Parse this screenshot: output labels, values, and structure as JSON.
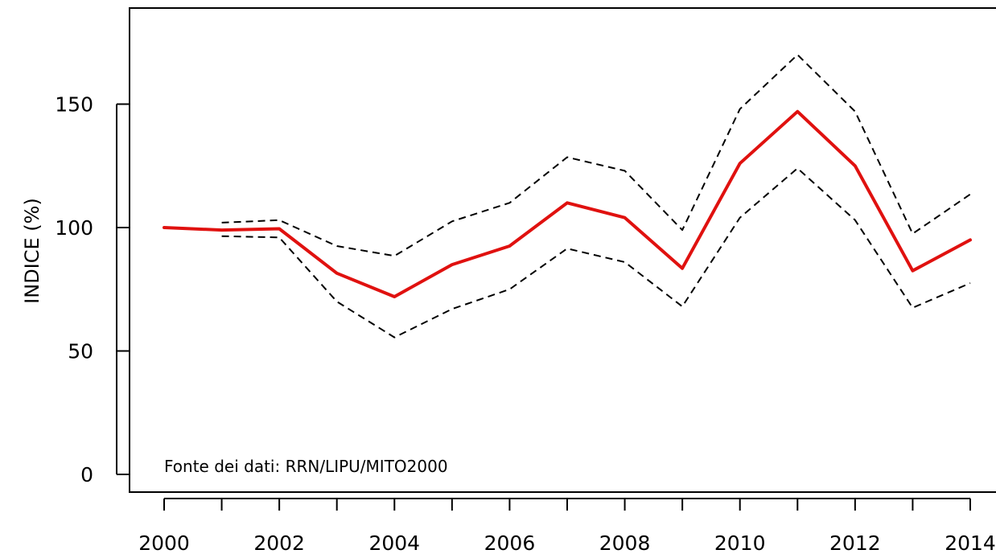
{
  "chart_data": {
    "type": "line",
    "ylabel": "INDICE (%)",
    "annotation": "Fonte dei dati: RRN/LIPU/MITO2000",
    "x": [
      2000,
      2001,
      2002,
      2003,
      2004,
      2005,
      2006,
      2007,
      2008,
      2009,
      2010,
      2011,
      2012,
      2013,
      2014
    ],
    "xticks": [
      2000,
      2001,
      2002,
      2003,
      2004,
      2005,
      2006,
      2007,
      2008,
      2009,
      2010,
      2011,
      2012,
      2013,
      2014
    ],
    "xtick_labels": [
      "2000",
      "",
      "2002",
      "",
      "2004",
      "",
      "2006",
      "",
      "2008",
      "",
      "2010",
      "",
      "2012",
      "",
      "2014"
    ],
    "yticks": [
      0,
      50,
      100,
      150
    ],
    "ytick_labels": [
      "0",
      "50",
      "100",
      "150"
    ],
    "xlim": [
      2000,
      2014
    ],
    "ylim": [
      0,
      180
    ],
    "grid": false,
    "series": [
      {
        "role": "index",
        "style": "solid",
        "color": "#e0110f",
        "values": [
          100,
          99,
          99.5,
          81.5,
          72,
          85,
          92.5,
          110,
          104,
          83.5,
          126,
          147,
          125,
          82.5,
          95
        ]
      },
      {
        "role": "upper-bound",
        "style": "dashed",
        "color": "#000000",
        "values": [
          null,
          102,
          103,
          92.5,
          88.5,
          102.5,
          110,
          128.5,
          123,
          99,
          148,
          170,
          147,
          97.5,
          113.5
        ]
      },
      {
        "role": "lower-bound",
        "style": "dashed",
        "color": "#000000",
        "values": [
          null,
          96.5,
          96,
          70,
          55.5,
          67,
          75,
          91.5,
          86,
          68,
          104,
          124,
          103,
          67.5,
          77.5
        ]
      }
    ]
  }
}
